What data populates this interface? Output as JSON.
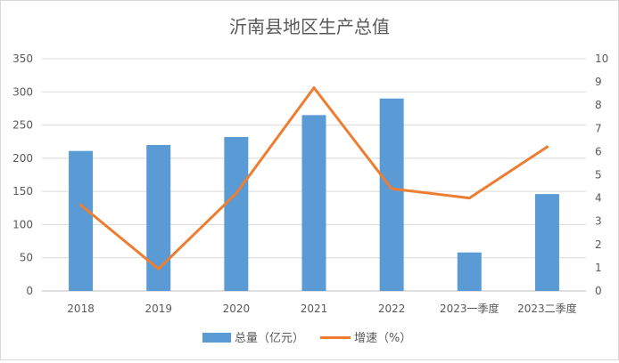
{
  "chart_data": {
    "type": "bar+line",
    "title": "沂南县地区生产总值",
    "categories": [
      "2018",
      "2019",
      "2020",
      "2021",
      "2022",
      "2023一季度",
      "2023二季度"
    ],
    "series": [
      {
        "name": "总量（亿元）",
        "type": "bar",
        "axis": "left",
        "color": "#5B9BD5",
        "values": [
          211,
          220,
          232,
          265,
          290,
          58,
          146
        ]
      },
      {
        "name": "增速（%）",
        "type": "line",
        "axis": "right",
        "color": "#ED7D31",
        "values": [
          3.7,
          0.95,
          4.2,
          8.75,
          4.4,
          4.0,
          6.2
        ]
      }
    ],
    "y_left": {
      "min": 0,
      "max": 350,
      "ticks": [
        0,
        50,
        100,
        150,
        200,
        250,
        300,
        350
      ]
    },
    "y_right": {
      "min": 0,
      "max": 10,
      "ticks": [
        0,
        1,
        2,
        3,
        4,
        5,
        6,
        7,
        8,
        9,
        10
      ]
    },
    "grid": true,
    "legend_position": "bottom"
  }
}
